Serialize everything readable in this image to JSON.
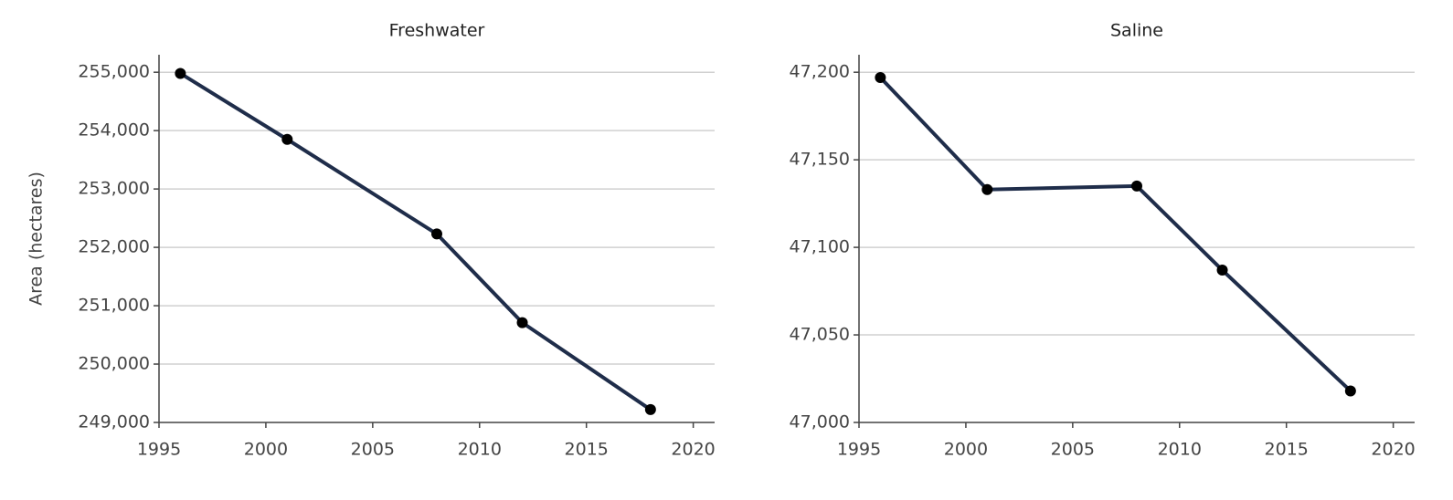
{
  "chart_data": [
    {
      "type": "line",
      "title": "Freshwater",
      "ylabel": "Area (hectares)",
      "x": [
        1996,
        2001,
        2008,
        2012,
        2018
      ],
      "series": [
        {
          "color": "#1f2d4a",
          "values": [
            254980,
            253850,
            252230,
            250710,
            249220
          ]
        }
      ],
      "xlim": [
        1995,
        2021
      ],
      "xticks": [
        1995,
        2000,
        2005,
        2010,
        2015,
        2020
      ],
      "ylim": [
        249000,
        255300
      ],
      "yticks": [
        {
          "value": 249000,
          "label": "249,000"
        },
        {
          "value": 250000,
          "label": "250,000"
        },
        {
          "value": 251000,
          "label": "251,000"
        },
        {
          "value": 252000,
          "label": "252,000"
        },
        {
          "value": 253000,
          "label": "253,000"
        },
        {
          "value": 254000,
          "label": "254,000"
        },
        {
          "value": 255000,
          "label": "255,000"
        }
      ],
      "grid": true
    },
    {
      "type": "line",
      "title": "Saline",
      "x": [
        1996,
        2001,
        2008,
        2012,
        2018
      ],
      "series": [
        {
          "color": "#1f2d4a",
          "values": [
            47197,
            47133,
            47135,
            47087,
            47018
          ]
        }
      ],
      "xlim": [
        1995,
        2021
      ],
      "xticks": [
        1995,
        2000,
        2005,
        2010,
        2015,
        2020
      ],
      "ylim": [
        47000,
        47210
      ],
      "yticks": [
        {
          "value": 47000,
          "label": "47,000"
        },
        {
          "value": 47050,
          "label": "47,050"
        },
        {
          "value": 47100,
          "label": "47,100"
        },
        {
          "value": 47150,
          "label": "47,150"
        },
        {
          "value": 47200,
          "label": "47,200"
        }
      ],
      "grid": true
    }
  ]
}
